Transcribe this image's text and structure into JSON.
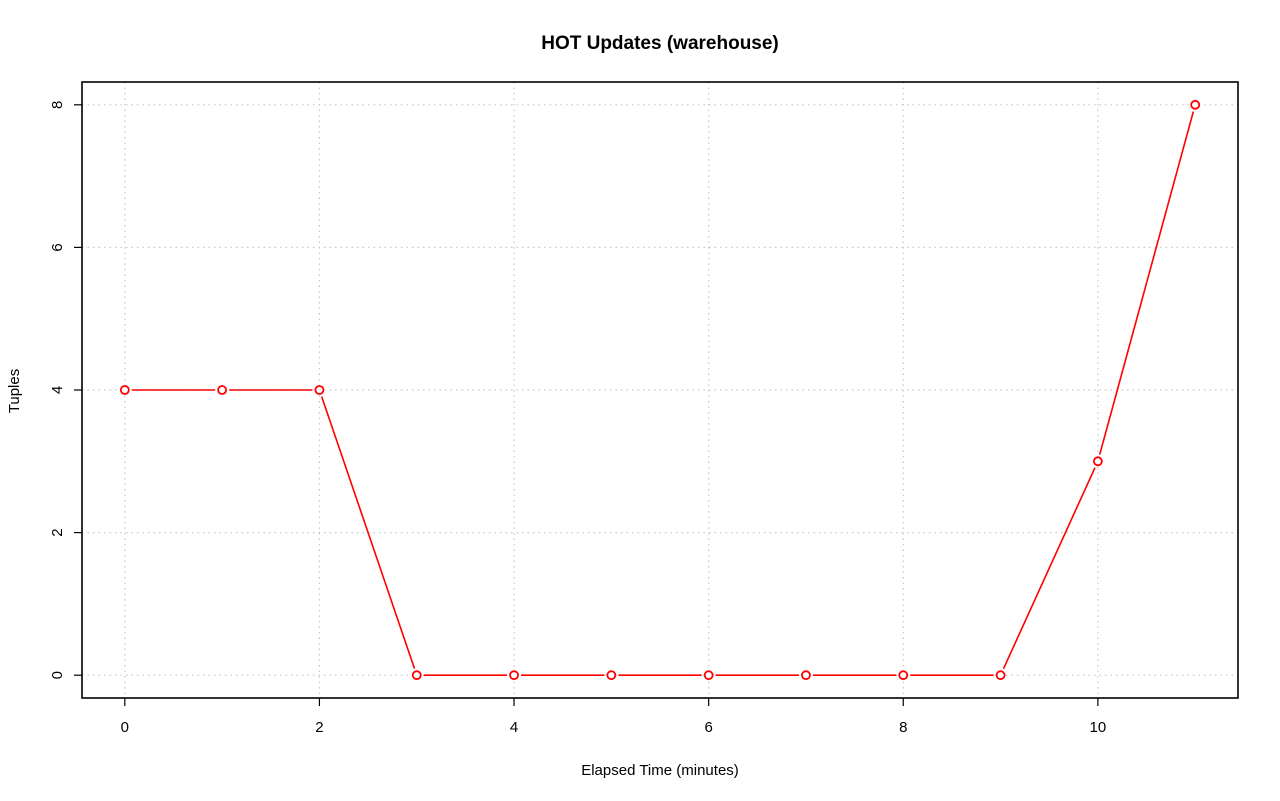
{
  "chart_data": {
    "type": "line",
    "title": "HOT Updates (warehouse)",
    "xlabel": "Elapsed Time (minutes)",
    "ylabel": "Tuples",
    "x": [
      0,
      1,
      2,
      3,
      4,
      5,
      6,
      7,
      8,
      9,
      10,
      11
    ],
    "series": [
      {
        "values": [
          4,
          4,
          4,
          0,
          0,
          0,
          0,
          0,
          0,
          0,
          3,
          8
        ],
        "color": "#ff0000"
      }
    ],
    "xlim": [
      -0.44,
      11.44
    ],
    "ylim": [
      -0.32,
      8.32
    ],
    "xticks": [
      0,
      2,
      4,
      6,
      8,
      10
    ],
    "yticks": [
      0,
      2,
      4,
      6,
      8
    ],
    "xtick_labels": [
      "0",
      "2",
      "4",
      "6",
      "8",
      "10"
    ],
    "ytick_labels": [
      "0",
      "2",
      "4",
      "6",
      "8"
    ],
    "x_grid": [
      0,
      2,
      4,
      6,
      8,
      10
    ],
    "y_grid": [
      0,
      2,
      4,
      6,
      8
    ],
    "grid": true,
    "grid_style": "dotted",
    "marker": "open-circle",
    "legend": "none"
  }
}
